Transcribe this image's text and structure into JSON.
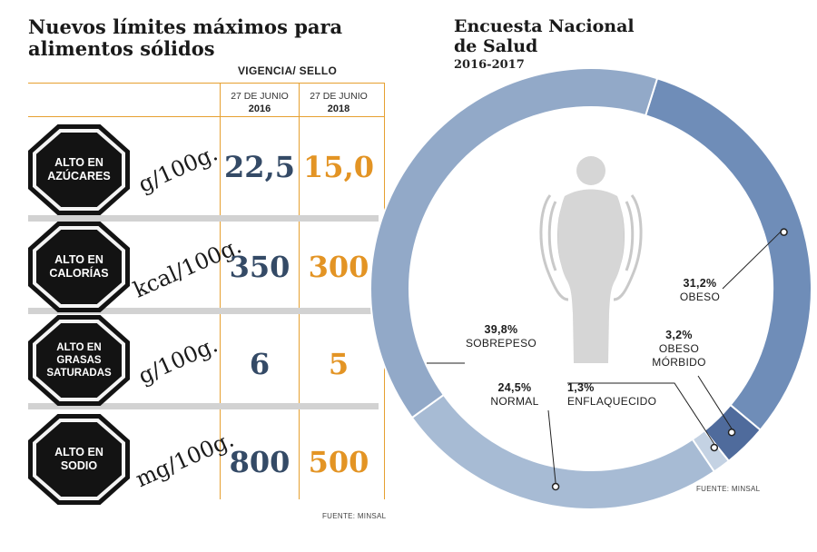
{
  "left": {
    "title": "Nuevos límites máximos para alimentos sólidos",
    "vigencia": "VIGENCIA/ SELLO",
    "col_2016_top": "27 DE JUNIO",
    "col_2016_year": "2016",
    "col_2018_top": "27 DE JUNIO",
    "col_2018_year": "2018",
    "rows": [
      {
        "label": "ALTO EN AZÚCARES",
        "unit": "g/100g.",
        "v2016": "22,5",
        "v2018": "15,0"
      },
      {
        "label": "ALTO EN CALORÍAS",
        "unit": "kcal/100g.",
        "v2016": "350",
        "v2018": "300"
      },
      {
        "label": "ALTO EN GRASAS SATURADAS",
        "unit": "g/100g.",
        "v2016": "6",
        "v2018": "5"
      },
      {
        "label": "ALTO EN SODIO",
        "unit": "mg/100g.",
        "v2016": "800",
        "v2018": "500"
      }
    ],
    "fuente": "FUENTE: MINSAL"
  },
  "right": {
    "title_line1": "Encuesta Nacional",
    "title_line2": "de Salud",
    "subtitle": "2016-2017",
    "fuente": "FUENTE: MINSAL",
    "labels": {
      "obeso_pct": "31,2%",
      "obeso": "OBESO",
      "morbido_pct": "3,2%",
      "morbido_1": "OBESO",
      "morbido_2": "MÓRBIDO",
      "sobrepeso_pct": "39,8%",
      "sobrepeso": "SOBREPESO",
      "normal_pct": "24,5%",
      "normal": "NORMAL",
      "enflaquecido_pct": "1,3%",
      "enflaquecido": "ENFLAQUECIDO"
    }
  },
  "colors": {
    "accent_orange": "#e39424",
    "navy": "#344a66",
    "obeso": "#6f8db8",
    "morbido": "#4f6b9c",
    "sobrepeso": "#92a9c8",
    "normal": "#a7bbd4",
    "enflaquecido": "#c4d2e3"
  },
  "chart_data": [
    {
      "type": "table",
      "title": "Nuevos límites máximos para alimentos sólidos",
      "columns": [
        "27 DE JUNIO 2016",
        "27 DE JUNIO 2018"
      ],
      "rows": [
        {
          "label": "ALTO EN AZÚCARES",
          "unit": "g/100g.",
          "values": [
            22.5,
            15.0
          ]
        },
        {
          "label": "ALTO EN CALORÍAS",
          "unit": "kcal/100g.",
          "values": [
            350,
            300
          ]
        },
        {
          "label": "ALTO EN GRASAS SATURADAS",
          "unit": "g/100g.",
          "values": [
            6,
            5
          ]
        },
        {
          "label": "ALTO EN SODIO",
          "unit": "mg/100g.",
          "values": [
            800,
            500
          ]
        }
      ]
    },
    {
      "type": "pie",
      "donut": true,
      "title": "Encuesta Nacional de Salud",
      "subtitle": "2016-2017",
      "slices": [
        {
          "name": "OBESO",
          "value": 31.2,
          "color": "#6f8db8"
        },
        {
          "name": "OBESO MÓRBIDO",
          "value": 3.2,
          "color": "#4f6b9c"
        },
        {
          "name": "ENFLAQUECIDO",
          "value": 1.3,
          "color": "#c4d2e3"
        },
        {
          "name": "NORMAL",
          "value": 24.5,
          "color": "#a7bbd4"
        },
        {
          "name": "SOBREPESO",
          "value": 39.8,
          "color": "#92a9c8"
        }
      ]
    }
  ]
}
